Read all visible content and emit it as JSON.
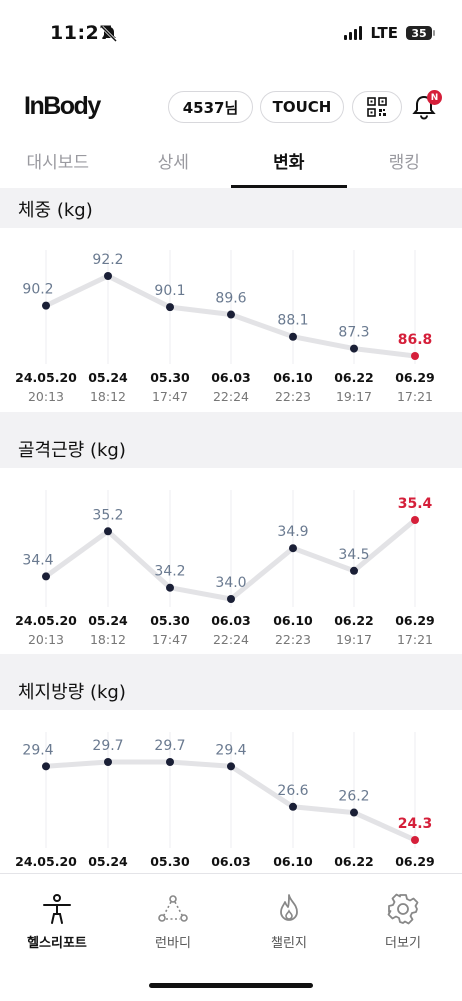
{
  "status": {
    "time": "11:27",
    "network": "LTE",
    "battery": "35"
  },
  "header": {
    "logo": "InBody",
    "user_label": "4537님",
    "touch_label": "TOUCH",
    "notification_badge": "N"
  },
  "tabs": [
    "대시보드",
    "상세",
    "변화",
    "랭킹"
  ],
  "active_tab": "변화",
  "colors": {
    "accent": "#d51f3a",
    "point": "#1a1f36",
    "line": "#e3e3e6",
    "label": "#6a7a90"
  },
  "dates": [
    "24.05.20",
    "05.24",
    "05.30",
    "06.03",
    "06.10",
    "06.22",
    "06.29"
  ],
  "times": [
    "20:13",
    "18:12",
    "17:47",
    "22:24",
    "22:23",
    "19:17",
    "17:21"
  ],
  "chart_data": [
    {
      "type": "line",
      "title": "체중 (kg)",
      "x": [
        "24.05.20",
        "05.24",
        "05.30",
        "06.03",
        "06.10",
        "06.22",
        "06.29"
      ],
      "values": [
        90.2,
        92.2,
        90.1,
        89.6,
        88.1,
        87.3,
        86.8
      ]
    },
    {
      "type": "line",
      "title": "골격근량 (kg)",
      "x": [
        "24.05.20",
        "05.24",
        "05.30",
        "06.03",
        "06.10",
        "06.22",
        "06.29"
      ],
      "values": [
        34.4,
        35.2,
        34.2,
        34.0,
        34.9,
        34.5,
        35.4
      ]
    },
    {
      "type": "line",
      "title": "체지방량 (kg)",
      "x": [
        "24.05.20",
        "05.24",
        "05.30",
        "06.03",
        "06.10",
        "06.22",
        "06.29"
      ],
      "values": [
        29.4,
        29.7,
        29.7,
        29.4,
        26.6,
        26.2,
        24.3
      ]
    }
  ],
  "bottom_nav": [
    {
      "label": "헬스리포트",
      "icon": "person-icon"
    },
    {
      "label": "런바디",
      "icon": "run-body-icon"
    },
    {
      "label": "챌린지",
      "icon": "flame-icon"
    },
    {
      "label": "더보기",
      "icon": "gear-icon"
    }
  ]
}
